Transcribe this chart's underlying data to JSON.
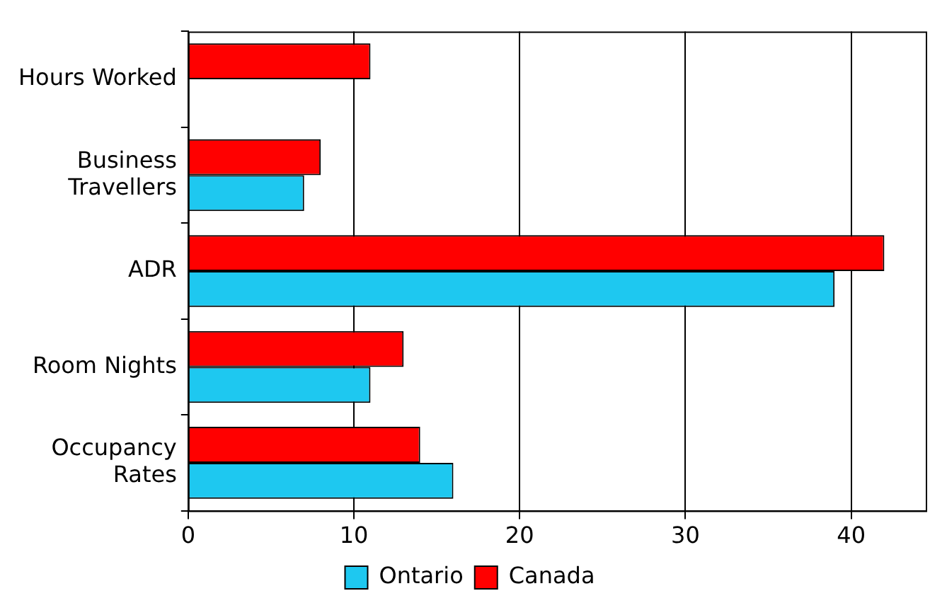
{
  "chart_data": {
    "type": "bar",
    "orientation": "horizontal",
    "categories": [
      "Hours Worked",
      "Business Travellers",
      "ADR",
      "Room Nights",
      "Occupancy Rates"
    ],
    "series": [
      {
        "name": "Canada",
        "color": "#ff0000",
        "values": [
          11,
          8,
          42,
          13,
          14
        ]
      },
      {
        "name": "Ontario",
        "color": "#1ec8f0",
        "values": [
          null,
          7,
          39,
          11,
          16
        ]
      }
    ],
    "xlim": [
      0,
      44.5
    ],
    "xticks": [
      0,
      10,
      20,
      30,
      40
    ],
    "grid": "x",
    "legend": "bottom"
  }
}
